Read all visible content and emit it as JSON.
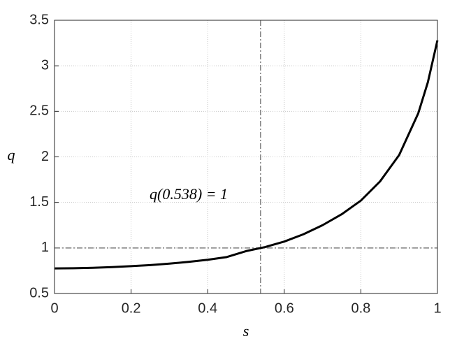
{
  "chart_data": {
    "type": "line",
    "xlabel": "s",
    "ylabel": "q",
    "annotation": "q(0.538) = 1",
    "x": [
      0,
      0.05,
      0.1,
      0.15,
      0.2,
      0.25,
      0.3,
      0.35,
      0.4,
      0.45,
      0.5,
      0.55,
      0.6,
      0.65,
      0.7,
      0.75,
      0.8,
      0.85,
      0.9,
      0.95,
      0.975,
      1
    ],
    "series": [
      {
        "name": "q",
        "color": "#000000",
        "values": [
          0.775,
          0.777,
          0.782,
          0.79,
          0.8,
          0.812,
          0.828,
          0.847,
          0.87,
          0.9,
          0.965,
          1.01,
          1.07,
          1.15,
          1.25,
          1.37,
          1.52,
          1.73,
          2.02,
          2.48,
          2.82,
          3.28
        ]
      }
    ],
    "reference_lines": {
      "x": 0.538,
      "y": 1,
      "color": "#808080"
    },
    "xlim": [
      0,
      1
    ],
    "ylim": [
      0.5,
      3.5
    ],
    "xticks": [
      0,
      0.2,
      0.4,
      0.6,
      0.8,
      1
    ],
    "yticks": [
      0.5,
      1,
      1.5,
      2,
      2.5,
      3,
      3.5
    ],
    "grid": true
  }
}
